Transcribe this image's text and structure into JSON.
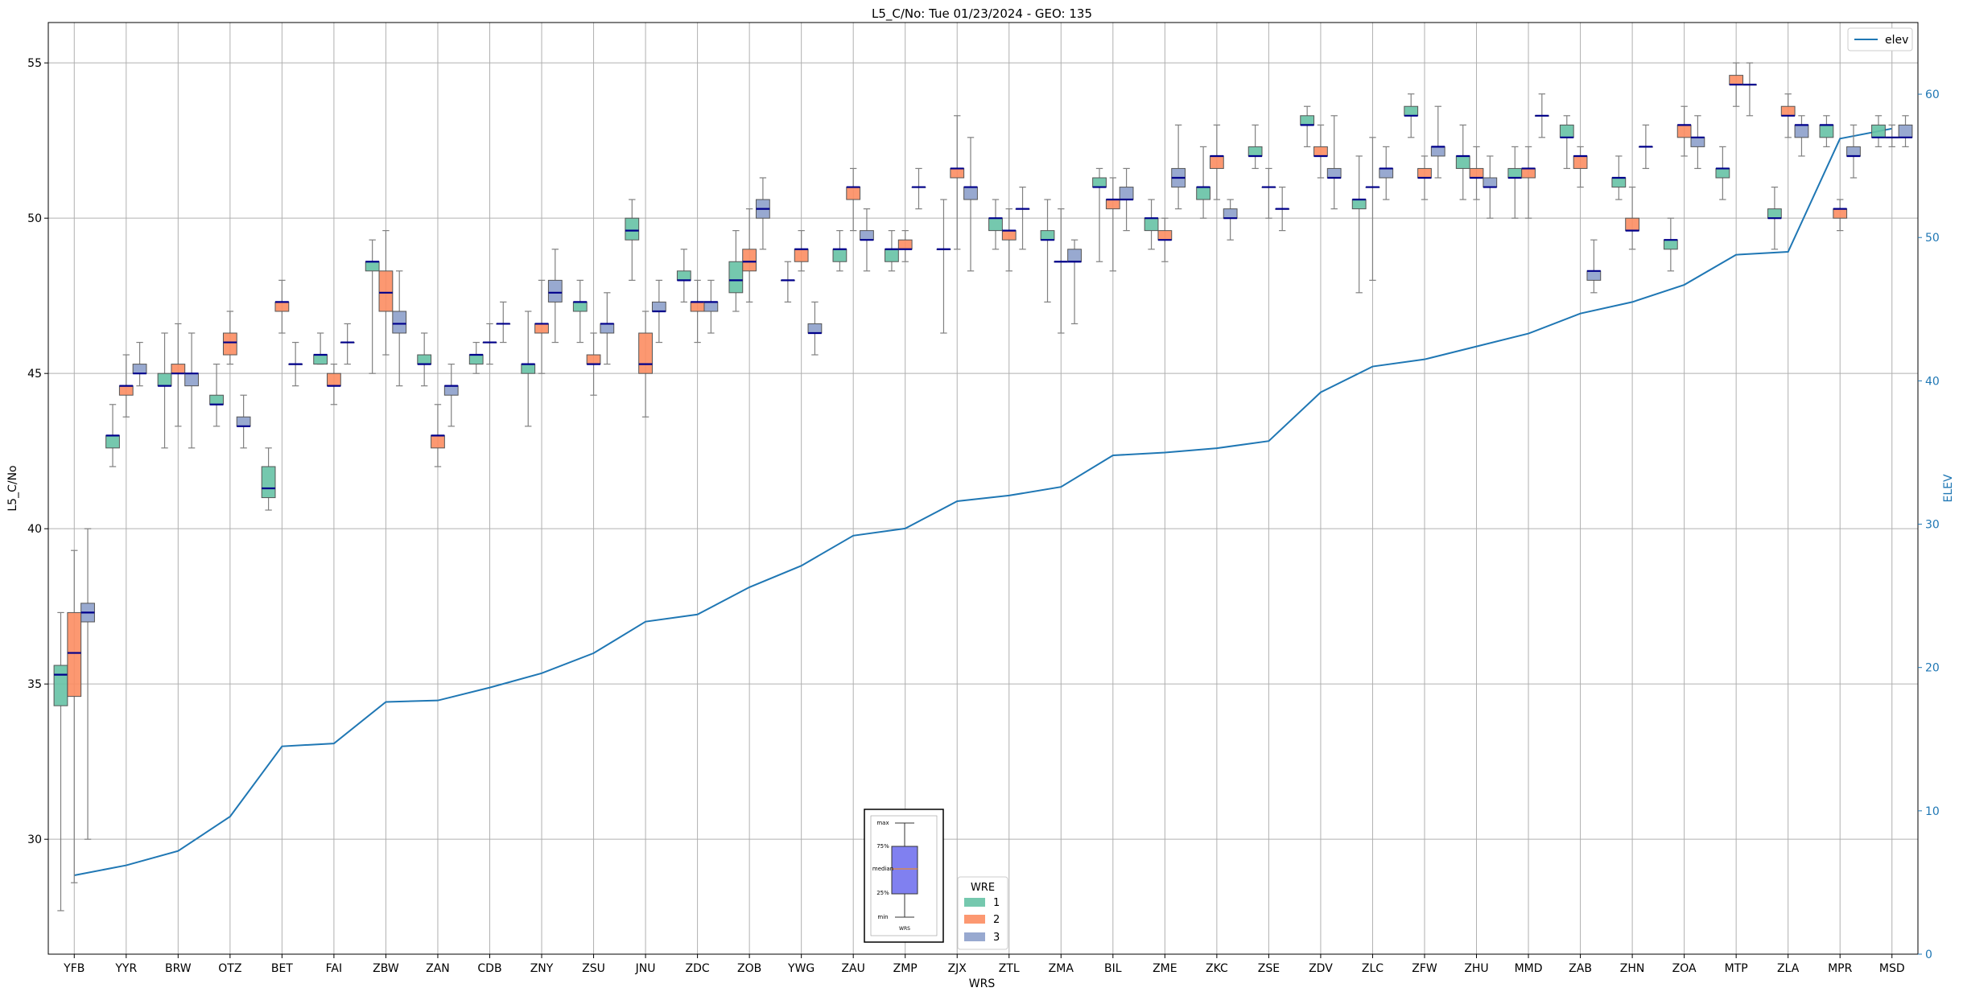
{
  "chart_data": {
    "type": "box",
    "title": "L5_C/No: Tue 01/23/2024 - GEO: 135",
    "xlabel": "WRS",
    "ylabel": "L5_C/No",
    "y2label": "ELEV",
    "ylim": [
      26.3,
      56.3
    ],
    "y2lim": [
      0,
      65
    ],
    "yticks": [
      30,
      35,
      40,
      45,
      50,
      55
    ],
    "y2ticks": [
      0,
      10,
      20,
      30,
      40,
      50,
      60
    ],
    "grid": true,
    "colors": {
      "1": "#66c2a5",
      "2": "#fc8d62",
      "3": "#8da0cb",
      "median": "#00008b",
      "elev": "#1f77b4",
      "whisker": "#808080"
    },
    "categories": [
      "YFB",
      "YYR",
      "BRW",
      "OTZ",
      "BET",
      "FAI",
      "ZBW",
      "ZAN",
      "CDB",
      "ZNY",
      "ZSU",
      "JNU",
      "ZDC",
      "ZOB",
      "YWG",
      "ZAU",
      "ZMP",
      "ZJX",
      "ZTL",
      "ZMA",
      "BIL",
      "ZME",
      "ZKC",
      "ZSE",
      "ZDV",
      "ZLC",
      "ZFW",
      "ZHU",
      "MMD",
      "ZAB",
      "ZHN",
      "ZOA",
      "MTP",
      "ZLA",
      "MPR",
      "MSD"
    ],
    "wre_names": [
      "1",
      "2",
      "3"
    ],
    "boxes": [
      [
        [
          27.7,
          34.3,
          35.3,
          35.6,
          37.3
        ],
        [
          28.6,
          34.6,
          36.0,
          37.3,
          39.3
        ],
        [
          30.0,
          37.0,
          37.3,
          37.6,
          40.0
        ]
      ],
      [
        [
          42.0,
          42.6,
          43.0,
          43.0,
          44.0
        ],
        [
          43.6,
          44.3,
          44.6,
          44.6,
          45.6
        ],
        [
          44.6,
          45.0,
          45.0,
          45.3,
          46.0
        ]
      ],
      [
        [
          42.6,
          44.6,
          44.6,
          45.0,
          46.3
        ],
        [
          43.3,
          45.0,
          45.0,
          45.3,
          46.6
        ],
        [
          42.6,
          44.6,
          45.0,
          45.0,
          46.3
        ]
      ],
      [
        [
          43.3,
          44.0,
          44.0,
          44.3,
          45.3
        ],
        [
          45.3,
          45.6,
          46.0,
          46.3,
          47.0
        ],
        [
          42.6,
          43.3,
          43.3,
          43.6,
          44.3
        ]
      ],
      [
        [
          40.6,
          41.0,
          41.3,
          42.0,
          42.6
        ],
        [
          46.3,
          47.0,
          47.3,
          47.3,
          48.0
        ],
        [
          44.6,
          45.3,
          45.3,
          45.3,
          46.0
        ]
      ],
      [
        [
          45.3,
          45.3,
          45.6,
          45.6,
          46.3
        ],
        [
          44.0,
          44.6,
          44.6,
          45.0,
          45.3
        ],
        [
          45.3,
          46.0,
          46.0,
          46.0,
          46.6
        ]
      ],
      [
        [
          45.0,
          48.3,
          48.6,
          48.6,
          49.3
        ],
        [
          45.6,
          47.0,
          47.6,
          48.3,
          49.6
        ],
        [
          44.6,
          46.3,
          46.6,
          47.0,
          48.3
        ]
      ],
      [
        [
          44.6,
          45.3,
          45.3,
          45.6,
          46.3
        ],
        [
          42.0,
          42.6,
          43.0,
          43.0,
          44.0
        ],
        [
          43.3,
          44.3,
          44.6,
          44.6,
          45.3
        ]
      ],
      [
        [
          45.0,
          45.3,
          45.6,
          45.6,
          46.0
        ],
        [
          45.3,
          46.0,
          46.0,
          46.0,
          46.6
        ],
        [
          46.0,
          46.6,
          46.6,
          46.6,
          47.3
        ]
      ],
      [
        [
          43.3,
          45.0,
          45.3,
          45.3,
          47.0
        ],
        [
          45.0,
          46.3,
          46.6,
          46.6,
          48.0
        ],
        [
          46.0,
          47.3,
          47.6,
          48.0,
          49.0
        ]
      ],
      [
        [
          46.0,
          47.0,
          47.3,
          47.3,
          48.0
        ],
        [
          44.3,
          45.3,
          45.3,
          45.6,
          46.3
        ],
        [
          45.3,
          46.3,
          46.6,
          46.6,
          47.6
        ]
      ],
      [
        [
          48.0,
          49.3,
          49.6,
          50.0,
          50.6
        ],
        [
          43.6,
          45.0,
          45.3,
          46.3,
          47.0
        ],
        [
          46.0,
          47.0,
          47.0,
          47.3,
          48.0
        ]
      ],
      [
        [
          47.3,
          48.0,
          48.0,
          48.3,
          49.0
        ],
        [
          46.0,
          47.0,
          47.3,
          47.3,
          48.0
        ],
        [
          46.3,
          47.0,
          47.3,
          47.3,
          48.0
        ]
      ],
      [
        [
          47.0,
          47.6,
          48.0,
          48.6,
          49.6
        ],
        [
          47.3,
          48.3,
          48.6,
          49.0,
          50.3
        ],
        [
          49.0,
          50.0,
          50.3,
          50.6,
          51.3
        ]
      ],
      [
        [
          47.3,
          48.0,
          48.0,
          48.0,
          48.6
        ],
        [
          48.3,
          48.6,
          49.0,
          49.0,
          49.6
        ],
        [
          45.6,
          46.3,
          46.3,
          46.6,
          47.3
        ]
      ],
      [
        [
          48.3,
          48.6,
          49.0,
          49.0,
          49.6
        ],
        [
          49.6,
          50.6,
          51.0,
          51.0,
          51.6
        ],
        [
          48.3,
          49.3,
          49.3,
          49.6,
          50.3
        ]
      ],
      [
        [
          48.3,
          48.6,
          49.0,
          49.0,
          49.6
        ],
        [
          48.6,
          49.0,
          49.0,
          49.3,
          49.6
        ],
        [
          50.3,
          51.0,
          51.0,
          51.0,
          51.6
        ]
      ],
      [
        [
          46.3,
          49.0,
          49.0,
          49.0,
          50.6
        ],
        [
          49.0,
          51.3,
          51.6,
          51.6,
          53.3
        ],
        [
          48.3,
          50.6,
          51.0,
          51.0,
          52.6
        ]
      ],
      [
        [
          49.0,
          49.6,
          50.0,
          50.0,
          50.6
        ],
        [
          48.3,
          49.3,
          49.6,
          49.6,
          50.3
        ],
        [
          49.0,
          50.3,
          50.3,
          50.3,
          51.0
        ]
      ],
      [
        [
          47.3,
          49.3,
          49.3,
          49.6,
          50.6
        ],
        [
          46.3,
          48.6,
          48.6,
          48.6,
          50.3
        ],
        [
          46.6,
          48.6,
          48.6,
          49.0,
          49.3
        ]
      ],
      [
        [
          48.6,
          51.0,
          51.0,
          51.3,
          51.6
        ],
        [
          48.3,
          50.3,
          50.6,
          50.6,
          51.3
        ],
        [
          49.6,
          50.6,
          50.6,
          51.0,
          51.6
        ]
      ],
      [
        [
          49.0,
          49.6,
          50.0,
          50.0,
          50.6
        ],
        [
          48.6,
          49.3,
          49.3,
          49.6,
          50.0
        ],
        [
          50.3,
          51.0,
          51.3,
          51.6,
          53.0
        ]
      ],
      [
        [
          50.0,
          50.6,
          51.0,
          51.0,
          52.3
        ],
        [
          50.6,
          51.6,
          52.0,
          52.0,
          53.0
        ],
        [
          49.3,
          50.0,
          50.0,
          50.3,
          50.6
        ]
      ],
      [
        [
          51.6,
          52.0,
          52.0,
          52.3,
          53.0
        ],
        [
          50.0,
          51.0,
          51.0,
          51.0,
          51.6
        ],
        [
          49.6,
          50.3,
          50.3,
          50.3,
          51.0
        ]
      ],
      [
        [
          52.3,
          53.0,
          53.0,
          53.3,
          53.6
        ],
        [
          51.3,
          52.0,
          52.0,
          52.3,
          53.0
        ],
        [
          50.3,
          51.3,
          51.3,
          51.6,
          53.3
        ]
      ],
      [
        [
          47.6,
          50.3,
          50.6,
          50.6,
          52.0
        ],
        [
          48.0,
          51.0,
          51.0,
          51.0,
          52.6
        ],
        [
          50.6,
          51.3,
          51.6,
          51.6,
          52.3
        ]
      ],
      [
        [
          52.6,
          53.3,
          53.3,
          53.6,
          54.0
        ],
        [
          50.6,
          51.3,
          51.3,
          51.6,
          52.0
        ],
        [
          51.3,
          52.0,
          52.3,
          52.3,
          53.6
        ]
      ],
      [
        [
          50.6,
          51.6,
          52.0,
          52.0,
          53.0
        ],
        [
          50.6,
          51.3,
          51.3,
          51.6,
          52.3
        ],
        [
          50.0,
          51.0,
          51.0,
          51.3,
          52.0
        ]
      ],
      [
        [
          50.0,
          51.3,
          51.3,
          51.6,
          52.3
        ],
        [
          50.0,
          51.3,
          51.6,
          51.6,
          52.3
        ],
        [
          52.6,
          53.3,
          53.3,
          53.3,
          54.0
        ]
      ],
      [
        [
          51.6,
          52.6,
          52.6,
          53.0,
          53.3
        ],
        [
          51.0,
          51.6,
          52.0,
          52.0,
          52.3
        ],
        [
          47.6,
          48.0,
          48.3,
          48.3,
          49.3
        ]
      ],
      [
        [
          50.6,
          51.0,
          51.3,
          51.3,
          52.0
        ],
        [
          49.0,
          49.6,
          49.6,
          50.0,
          51.0
        ],
        [
          51.6,
          52.3,
          52.3,
          52.3,
          53.0
        ]
      ],
      [
        [
          48.3,
          49.0,
          49.3,
          49.3,
          50.0
        ],
        [
          52.0,
          52.6,
          53.0,
          53.0,
          53.6
        ],
        [
          51.6,
          52.3,
          52.6,
          52.6,
          53.3
        ]
      ],
      [
        [
          50.6,
          51.3,
          51.6,
          51.6,
          52.3
        ],
        [
          53.6,
          54.3,
          54.3,
          54.6,
          55.0
        ],
        [
          53.3,
          54.3,
          54.3,
          54.3,
          55.0
        ]
      ],
      [
        [
          49.0,
          50.0,
          50.0,
          50.3,
          51.0
        ],
        [
          52.6,
          53.3,
          53.3,
          53.6,
          54.0
        ],
        [
          52.0,
          52.6,
          53.0,
          53.0,
          53.3
        ]
      ],
      [
        [
          52.3,
          52.6,
          53.0,
          53.0,
          53.3
        ],
        [
          49.6,
          50.0,
          50.3,
          50.3,
          50.6
        ],
        [
          51.3,
          52.0,
          52.0,
          52.3,
          53.0
        ]
      ],
      [
        [
          52.3,
          52.6,
          52.6,
          53.0,
          53.3
        ],
        [
          52.3,
          52.6,
          52.6,
          52.6,
          53.0
        ],
        [
          52.3,
          52.6,
          52.6,
          53.0,
          53.3
        ]
      ]
    ],
    "boxes_order": "[min, q1, median, q3, max] per WRE (1,2,3) per station",
    "elev": [
      5.5,
      6.2,
      7.2,
      9.6,
      14.5,
      14.7,
      17.6,
      17.7,
      18.6,
      19.6,
      21.0,
      23.2,
      23.7,
      25.6,
      27.1,
      29.2,
      29.7,
      31.6,
      32.0,
      32.6,
      34.8,
      35.0,
      35.3,
      35.8,
      39.2,
      41.0,
      41.5,
      42.4,
      43.3,
      44.7,
      45.5,
      46.7,
      48.8,
      49.0,
      56.9,
      57.6
    ],
    "legend_elev": "elev",
    "legend_wre_title": "WRE",
    "legend_wre": [
      "1",
      "2",
      "3"
    ],
    "legend_wre_placement": "bottom-center",
    "legend_elev_placement": "top-right",
    "inset_labels": [
      "max",
      "75%",
      "median",
      "25%",
      "min"
    ],
    "inset_xlabel": "WRS"
  }
}
